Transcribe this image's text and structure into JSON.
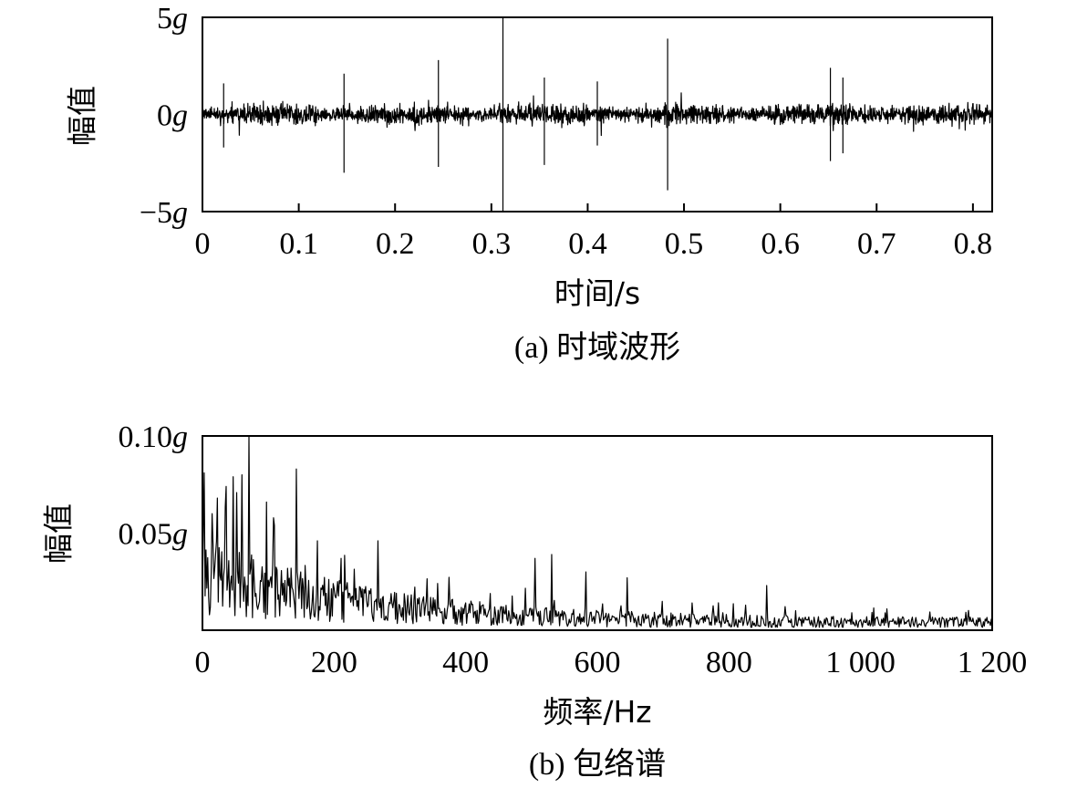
{
  "chart_data": [
    {
      "type": "line",
      "caption": "(a) 时域波形",
      "xlabel": "时间/s",
      "ylabel": "幅值",
      "xlim": [
        0,
        0.82
      ],
      "ylim": [
        -5,
        5
      ],
      "xticks": [
        0,
        0.1,
        0.2,
        0.3,
        0.4,
        0.5,
        0.6,
        0.7,
        0.8
      ],
      "xtick_labels": [
        "0",
        "0.1",
        "0.2",
        "0.3",
        "0.4",
        "0.5",
        "0.6",
        "0.7",
        "0.8"
      ],
      "yticks": [
        {
          "value": 5,
          "num": "5",
          "unit": "g"
        },
        {
          "value": 0,
          "num": "0",
          "unit": "g"
        },
        {
          "value": -5,
          "num": "−5",
          "unit": "g"
        }
      ],
      "grid": false,
      "noise_level": 0.45,
      "impulses": [
        {
          "x": 0.022,
          "up": 1.6,
          "down": -1.7
        },
        {
          "x": 0.147,
          "up": 2.1,
          "down": -3.0
        },
        {
          "x": 0.245,
          "up": 2.8,
          "down": -2.7
        },
        {
          "x": 0.312,
          "up": 5.0,
          "down": -5.0
        },
        {
          "x": 0.355,
          "up": 1.9,
          "down": -2.6
        },
        {
          "x": 0.41,
          "up": 1.7,
          "down": -1.6
        },
        {
          "x": 0.483,
          "up": 3.9,
          "down": -3.9
        },
        {
          "x": 0.652,
          "up": 2.4,
          "down": -2.4
        },
        {
          "x": 0.665,
          "up": 1.9,
          "down": -2.0
        }
      ]
    },
    {
      "type": "line",
      "caption": "(b) 包络谱",
      "xlabel": "频率/Hz",
      "ylabel": "幅值",
      "xlim": [
        0,
        1200
      ],
      "ylim": [
        0,
        0.1
      ],
      "xticks": [
        0,
        200,
        400,
        600,
        800,
        1000,
        1200
      ],
      "xtick_labels": [
        "0",
        "200",
        "400",
        "600",
        "800",
        "1 000",
        "1 200"
      ],
      "yticks": [
        {
          "value": 0.1,
          "num": "0.10",
          "unit": "g"
        },
        {
          "value": 0.05,
          "num": "0.05",
          "unit": "g"
        }
      ],
      "grid": false,
      "peaks": [
        {
          "x": 3,
          "y": 0.081
        },
        {
          "x": 14,
          "y": 0.06
        },
        {
          "x": 22,
          "y": 0.068
        },
        {
          "x": 36,
          "y": 0.074
        },
        {
          "x": 47,
          "y": 0.079
        },
        {
          "x": 60,
          "y": 0.08
        },
        {
          "x": 71,
          "y": 0.1
        },
        {
          "x": 97,
          "y": 0.066
        },
        {
          "x": 143,
          "y": 0.083
        },
        {
          "x": 175,
          "y": 0.046
        },
        {
          "x": 267,
          "y": 0.046
        },
        {
          "x": 505,
          "y": 0.037
        },
        {
          "x": 531,
          "y": 0.039
        },
        {
          "x": 583,
          "y": 0.03
        },
        {
          "x": 645,
          "y": 0.027
        },
        {
          "x": 857,
          "y": 0.023
        }
      ]
    }
  ]
}
